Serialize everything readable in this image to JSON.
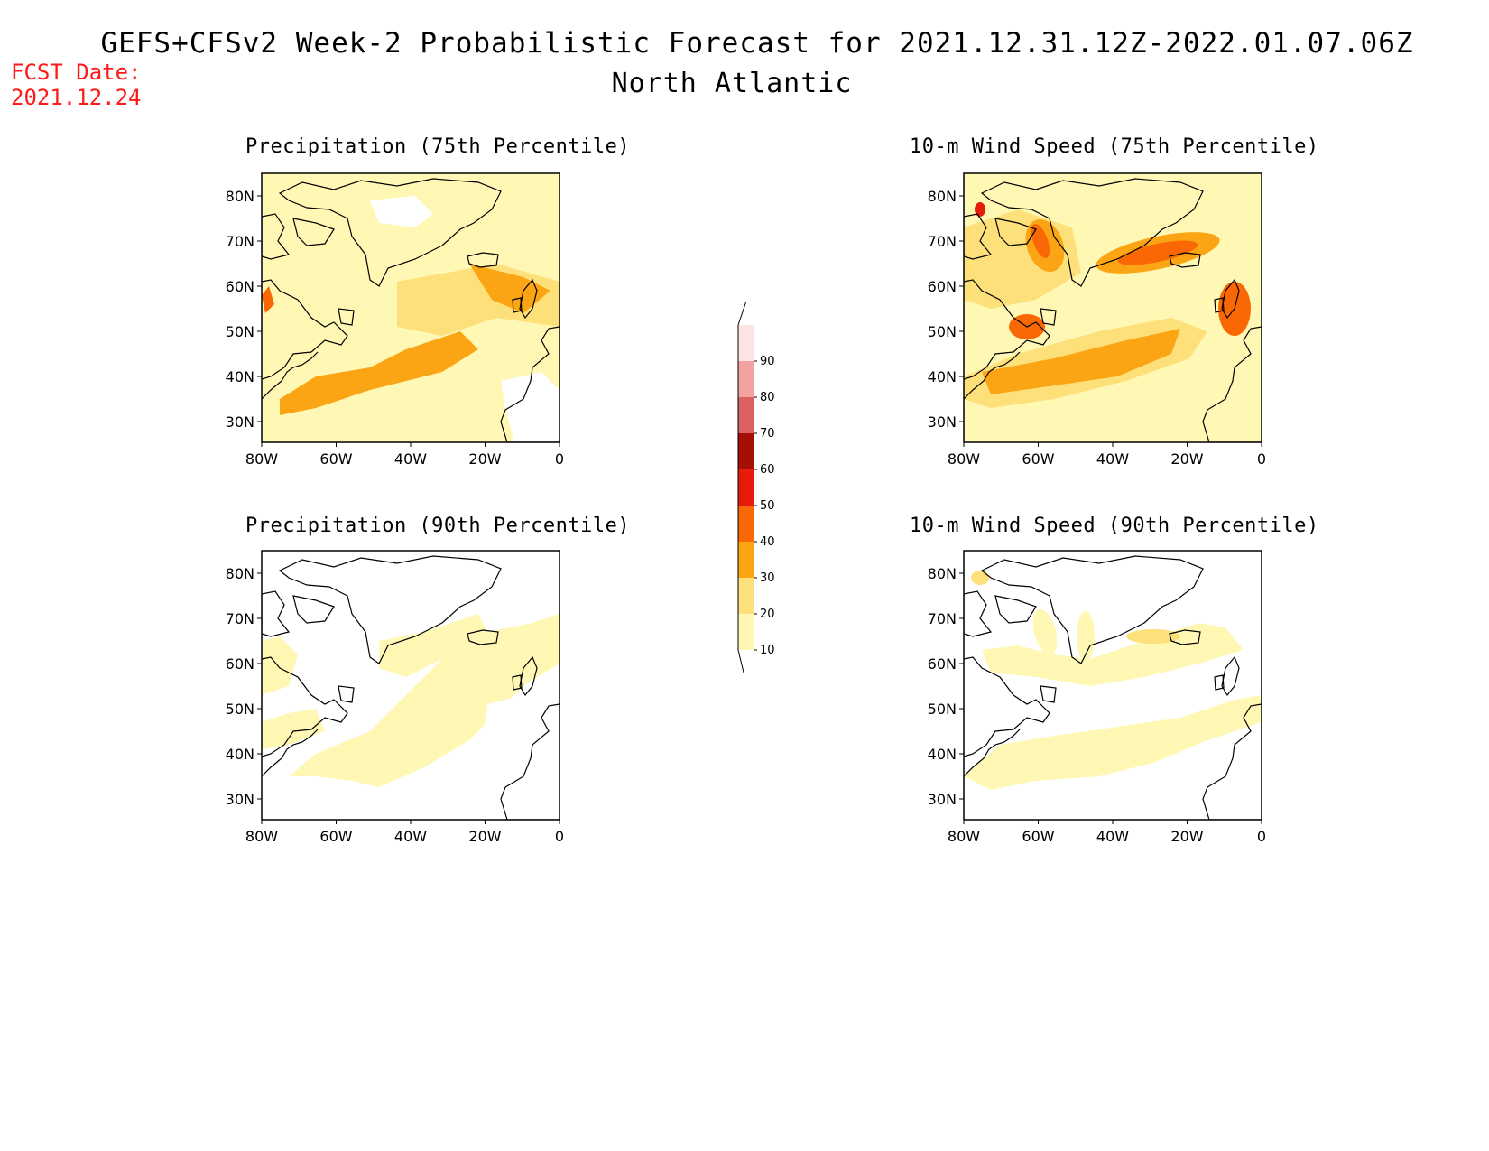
{
  "header": {
    "title": "GEFS+CFSv2 Week-2 Probabilistic Forecast for 2021.12.31.12Z-2022.01.07.06Z",
    "subtitle": "North Atlantic",
    "fcst_label": "FCST Date:",
    "fcst_date": "2021.12.24"
  },
  "panels": [
    {
      "id": "precip75",
      "title": "Precipitation (75th Percentile)"
    },
    {
      "id": "wind75",
      "title": "10-m Wind Speed (75th Percentile)"
    },
    {
      "id": "precip90",
      "title": "Precipitation (90th Percentile)"
    },
    {
      "id": "wind90",
      "title": "10-m Wind Speed (90th Percentile)"
    }
  ],
  "axes": {
    "lat_ticks": [
      "80N",
      "70N",
      "60N",
      "50N",
      "40N",
      "30N"
    ],
    "lon_ticks": [
      "80W",
      "60W",
      "40W",
      "20W",
      "0"
    ]
  },
  "colorbar": {
    "levels": [
      "10",
      "20",
      "30",
      "40",
      "50",
      "60",
      "70",
      "80",
      "90"
    ],
    "colors": [
      "#fff8b4",
      "#fde07a",
      "#fba515",
      "#fa6805",
      "#e41c08",
      "#a50f05",
      "#db6161",
      "#f3a0a0",
      "#fde4e4"
    ]
  }
}
